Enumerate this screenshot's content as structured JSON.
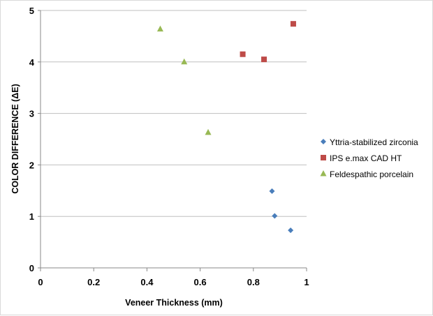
{
  "chart_data": {
    "type": "scatter",
    "title": "",
    "xlabel": "Veneer Thickness (mm)",
    "ylabel": "COLOR DIFFERENCE (ΔE)",
    "xlim": [
      0,
      1
    ],
    "ylim": [
      0,
      5
    ],
    "xticks": [
      "0",
      "0.2",
      "0.4",
      "0.6",
      "0.8",
      "1"
    ],
    "yticks": [
      "0",
      "1",
      "2",
      "3",
      "4",
      "5"
    ],
    "grid": "horizontal",
    "legend_position": "right",
    "series": [
      {
        "name": "Yttria-stabilized zirconia",
        "marker": "diamond",
        "color": "#4a7ebb",
        "points": [
          [
            0.87,
            1.49
          ],
          [
            0.88,
            1.01
          ],
          [
            0.94,
            0.73
          ]
        ]
      },
      {
        "name": "IPS e.max CAD HT",
        "marker": "square",
        "color": "#be4b48",
        "points": [
          [
            0.76,
            4.15
          ],
          [
            0.84,
            4.05
          ],
          [
            0.95,
            4.74
          ]
        ]
      },
      {
        "name": "Feldespathic porcelain",
        "marker": "triangle",
        "color": "#98b954",
        "points": [
          [
            0.45,
            4.64
          ],
          [
            0.54,
            4.0
          ],
          [
            0.63,
            2.63
          ]
        ]
      }
    ]
  }
}
